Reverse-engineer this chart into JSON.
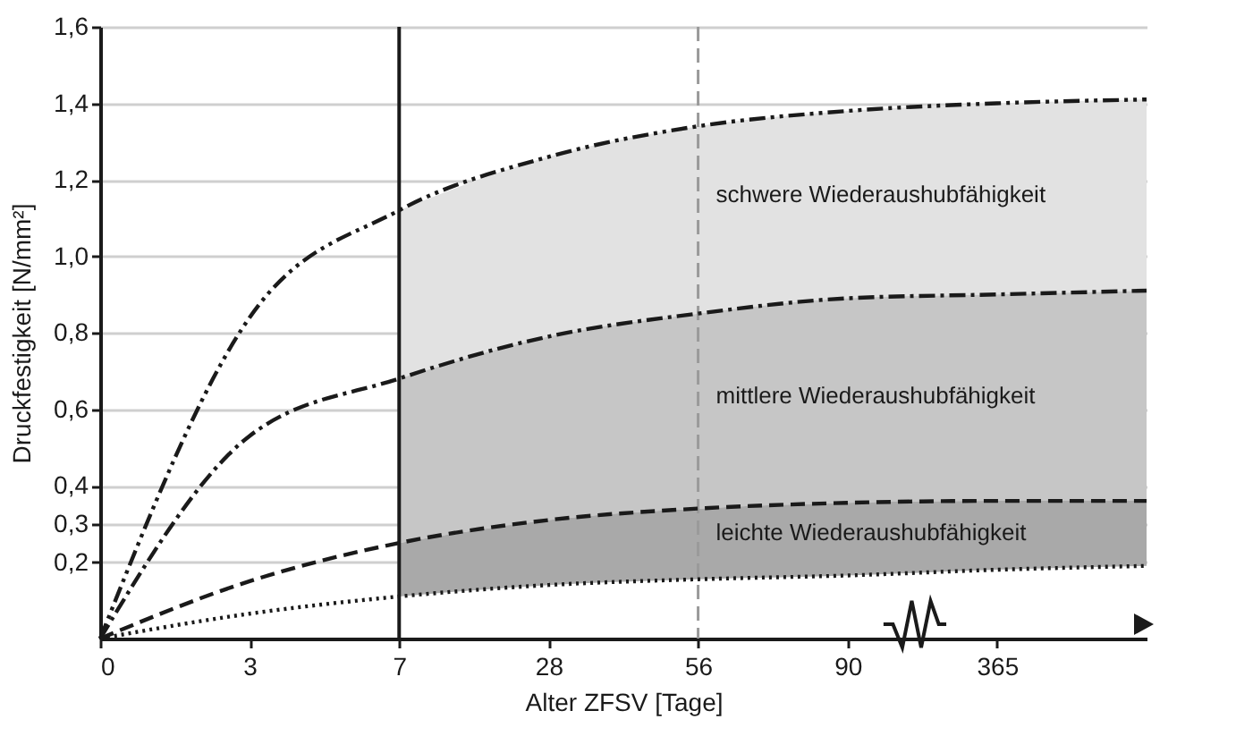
{
  "chart_data": {
    "type": "line",
    "xlabel": "Alter ZFSV [Tage]",
    "ylabel": "Druckfestigkeit [N/mm²]",
    "categories": [
      "0",
      "3",
      "7",
      "28",
      "56",
      "90",
      "365",
      null
    ],
    "ylim": [
      0,
      1.6
    ],
    "yticks": [
      {
        "value": 0.2,
        "label": "0,2"
      },
      {
        "value": 0.3,
        "label": "0,3"
      },
      {
        "value": 0.4,
        "label": "0,4"
      },
      {
        "value": 0.6,
        "label": "0,6"
      },
      {
        "value": 0.8,
        "label": "0,8"
      },
      {
        "value": 1.0,
        "label": "1,0"
      },
      {
        "value": 1.2,
        "label": "1,2"
      },
      {
        "value": 1.4,
        "label": "1,4"
      },
      {
        "value": 1.6,
        "label": "1,6"
      }
    ],
    "grid": "y",
    "series": [
      {
        "type": "area",
        "color": "#e2e2e2",
        "values": [
          null,
          null,
          1.12,
          1.26,
          1.34,
          1.38,
          1.4,
          1.41
        ]
      },
      {
        "type": "area",
        "color": "#c6c6c6",
        "values": [
          null,
          null,
          0.68,
          0.79,
          0.85,
          0.89,
          0.9,
          0.91
        ]
      },
      {
        "type": "area",
        "color": "#a9a9a9",
        "values": [
          null,
          null,
          0.25,
          0.31,
          0.34,
          0.355,
          0.36,
          0.36
        ]
      },
      {
        "color": "#1a1a1a",
        "line_style": "dashdotdot",
        "values": [
          0,
          0.84,
          1.12,
          1.26,
          1.34,
          1.38,
          1.4,
          1.41
        ]
      },
      {
        "color": "#1a1a1a",
        "line_style": "dashdot",
        "values": [
          0,
          0.53,
          0.68,
          0.79,
          0.85,
          0.89,
          0.9,
          0.91
        ]
      },
      {
        "color": "#1a1a1a",
        "line_style": "dashed",
        "values": [
          0,
          0.15,
          0.25,
          0.31,
          0.34,
          0.355,
          0.36,
          0.36
        ]
      },
      {
        "color": "#1a1a1a",
        "line_style": "dotted",
        "values": [
          0,
          0.065,
          0.11,
          0.14,
          0.155,
          0.165,
          0.18,
          0.19
        ]
      }
    ],
    "ref_lines": [
      {
        "axis": "x",
        "value": "7",
        "color": "#1a1a1a",
        "line_style": "solid"
      },
      {
        "axis": "x",
        "value": "56",
        "color": "#9a9a9a",
        "line_style": "dashed"
      }
    ],
    "annotations": [
      "schwere Wiederaushubfähigkeit",
      "mittlere Wiederaushubfähigkeit",
      "leichte Wiederaushubfähigkeit"
    ]
  }
}
